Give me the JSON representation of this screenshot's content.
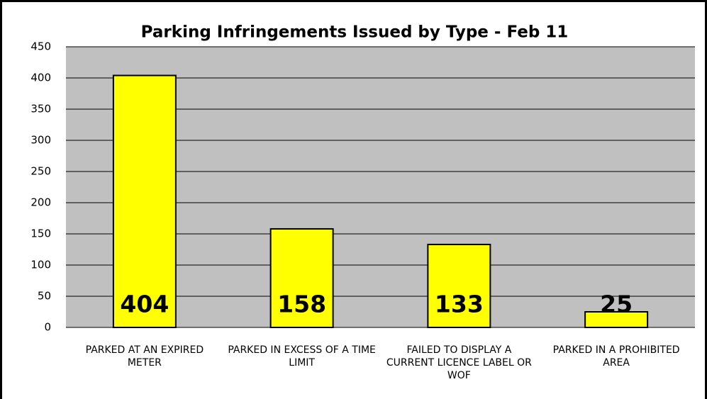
{
  "chart_data": {
    "type": "bar",
    "title": "Parking Infringements Issued by Type - Feb 11",
    "categories": [
      "PARKED AT AN EXPIRED METER",
      "PARKED IN EXCESS OF A TIME LIMIT",
      "FAILED TO DISPLAY A CURRENT LICENCE LABEL OR WOF",
      "PARKED IN A PROHIBITED AREA"
    ],
    "values": [
      404,
      158,
      133,
      25
    ],
    "color": "#ffff00",
    "ylim": [
      0,
      450
    ],
    "yticks": [
      0,
      50,
      100,
      150,
      200,
      250,
      300,
      350,
      400,
      450
    ],
    "grid": true
  }
}
